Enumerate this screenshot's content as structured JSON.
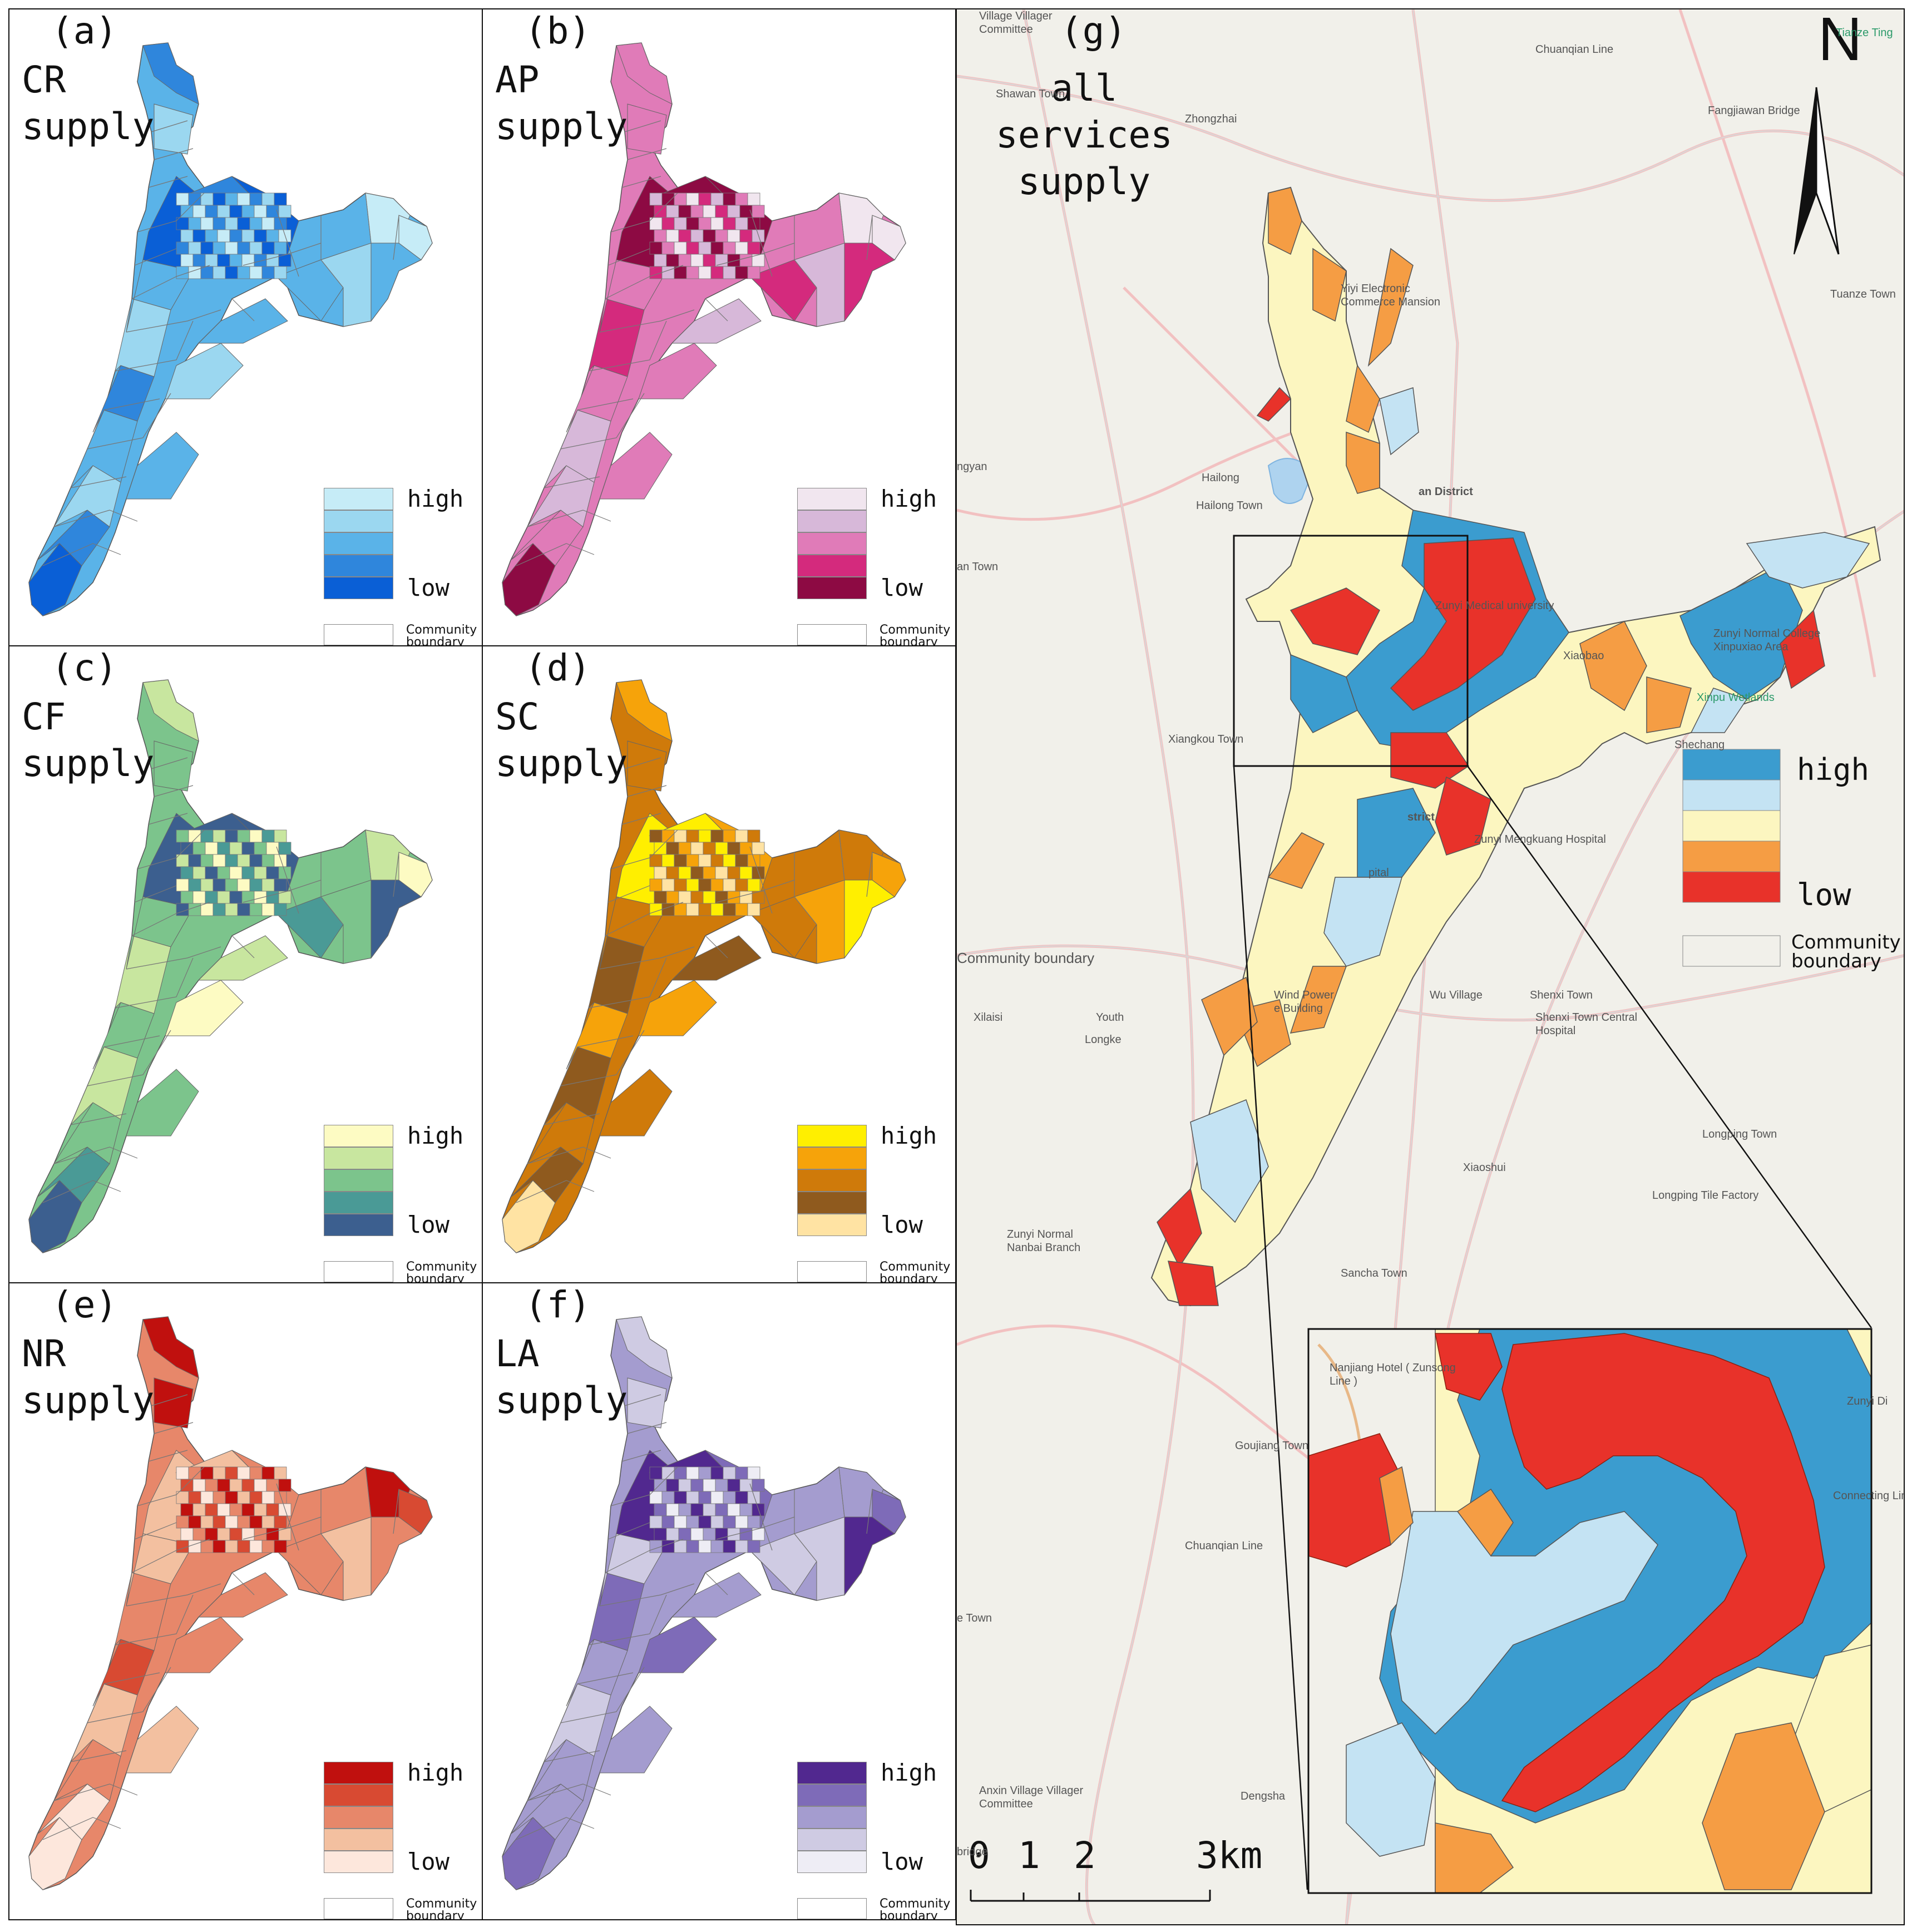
{
  "panels": [
    {
      "id": "a",
      "label": "(a)",
      "title": "CR\nsupply",
      "colors": [
        "#c6ecf7",
        "#9bd7f0",
        "#5ab3e8",
        "#2f86dc",
        "#0a5fd6"
      ]
    },
    {
      "id": "b",
      "label": "(b)",
      "title": "AP\nsupply",
      "colors": [
        "#f1e6ef",
        "#d7b8d9",
        "#e07bb8",
        "#d42a7d",
        "#8d0a43"
      ]
    },
    {
      "id": "c",
      "label": "(c)",
      "title": "CF\nsupply",
      "colors": [
        "#fdfbc3",
        "#c8e69f",
        "#7cc48c",
        "#4a9a96",
        "#3c5f8f"
      ]
    },
    {
      "id": "d",
      "label": "(d)",
      "title": "SC\nsupply",
      "colors": [
        "#ffef00",
        "#f6a30a",
        "#cf7a0a",
        "#8f5a1e",
        "#ffe3a3"
      ]
    },
    {
      "id": "e",
      "label": "(e)",
      "title": "NR\nsupply",
      "colors": [
        "#c0100e",
        "#d84a32",
        "#e7876a",
        "#f3c0a0",
        "#fde7dc"
      ]
    },
    {
      "id": "f",
      "label": "(f)",
      "title": "LA\nsupply",
      "colors": [
        "#51288f",
        "#7e6bb8",
        "#a49ccf",
        "#cfcbe3",
        "#eeedf5"
      ]
    }
  ],
  "legend": {
    "high": "high",
    "low": "low",
    "community_boundary": "Community\nboundary"
  },
  "main_panel": {
    "label": "(g)",
    "title": "all\nservices\nsupply",
    "north": "N",
    "colors": [
      "#3b9ccf",
      "#c4e3f3",
      "#fcf6c0",
      "#f59d44",
      "#e8322a"
    ],
    "legend_high": "high",
    "legend_low": "low",
    "legend_boundary": "Community\nboundary",
    "scale": {
      "labels": [
        "0",
        "1",
        "2",
        "3km"
      ]
    },
    "basemap_labels": [
      "Village Villager\nCommittee",
      "Shawan Town",
      "Zhongzhai",
      "Chuanqian Line",
      "Fangjiawan Bridge",
      "Tianze Ting",
      "Yiyi Electronic\nCommerce Mansion",
      "Tuanze Town",
      "Hailong",
      "Hailong Town",
      "ngyan",
      "an District",
      "an Town",
      "Zunyi Medical university",
      "Xiaobao",
      "Zunyi Normal College\nXinpuxiao Area",
      "Xinpu Wetlands",
      "Xiangkou Town",
      "Shechang",
      "strict",
      "Zunyi Mengkuang Hospital",
      "pital",
      "Community boundary",
      "Wu Village",
      "Shenxi Town",
      "Shenxi Town Central\nHospital",
      "Wind Power\ne Building",
      "Xilaisi",
      "Youth",
      "Longke",
      "Longping Town",
      "Xiaoshui",
      "Longping Tile Factory",
      "Zunyi Normal\nNanbai Branch",
      "Sancha Town",
      "Goujiang Town",
      "Anxin Village Villager\nCommittee",
      "Dengsha",
      "Nanjiang Hotel ( Zunsong\nLine )",
      "Connecting Line",
      "Chuanqian Line",
      "e Town",
      "Zunyi Di",
      "bridge"
    ]
  }
}
